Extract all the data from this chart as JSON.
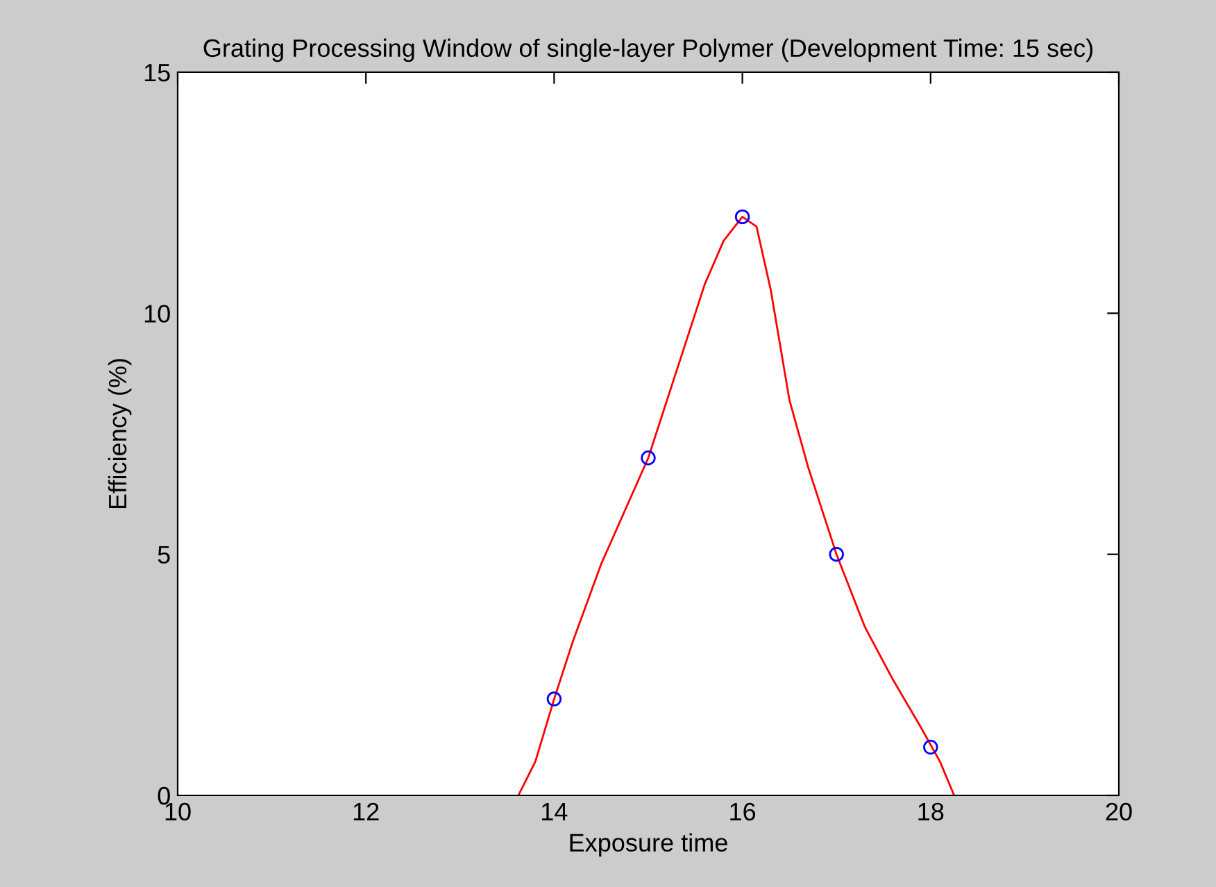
{
  "chart_data": {
    "type": "scatter",
    "title": "Grating Processing Window of single-layer Polymer (Development Time: 15 sec)",
    "xlabel": "Exposure time",
    "ylabel": "Efficiency (%)",
    "series": [
      {
        "type": "line",
        "color": "#ff0000",
        "marker": "none",
        "x": [
          13.62,
          13.8,
          14,
          14.2,
          14.5,
          15,
          15.3,
          15.6,
          15.8,
          16,
          16.15,
          16.3,
          16.5,
          16.7,
          17,
          17.3,
          17.6,
          17.9,
          18.1,
          18.25
        ],
        "values": [
          0,
          0.7,
          2,
          3.2,
          4.8,
          7,
          8.8,
          10.6,
          11.5,
          12,
          11.8,
          10.5,
          8.2,
          6.8,
          5,
          3.5,
          2.4,
          1.4,
          0.7,
          0
        ]
      },
      {
        "color": "#0000ff",
        "marker": "circle",
        "x": [
          14,
          15,
          16,
          17,
          18
        ],
        "values": [
          2,
          7,
          12,
          5,
          1
        ]
      }
    ],
    "xlim": [
      10,
      20
    ],
    "xticks": [
      10,
      12,
      14,
      16,
      18,
      20
    ],
    "ylim": [
      0,
      15
    ],
    "yticks": [
      0,
      5,
      10,
      15
    ],
    "grid": false
  }
}
